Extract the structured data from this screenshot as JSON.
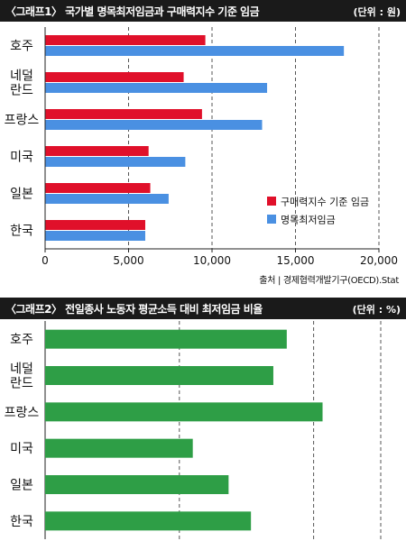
{
  "chart_data": [
    {
      "type": "bar",
      "orientation": "horizontal",
      "title": "〈그래프1〉 국가별 명목최저임금과 구매력지수 기준 임금",
      "unit": "(단위 : 원)",
      "categories": [
        "호주",
        "네덜\n란드",
        "프랑스",
        "미국",
        "일본",
        "한국"
      ],
      "series": [
        {
          "name": "구매력지수 기준 임금",
          "color": "#e0102a",
          "values": [
            9600,
            8300,
            9400,
            6200,
            6300,
            6000
          ]
        },
        {
          "name": "명목최저임금",
          "color": "#4a90e2",
          "values": [
            17900,
            13300,
            13000,
            8400,
            7400,
            6000
          ]
        }
      ],
      "xlim": [
        0,
        20000
      ],
      "xticks": [
        0,
        5000,
        10000,
        15000,
        20000
      ],
      "xtick_labels": [
        "0",
        "5,000",
        "10,000",
        "15,000",
        "20,000"
      ],
      "legend_position": "bottom-right",
      "source": "출처 | 경제협력개발기구(OECD).Stat"
    },
    {
      "type": "bar",
      "orientation": "horizontal",
      "title": "〈그래프2〉 전일종사 노동자 평균소득 대비 최저임금 비율",
      "unit": "(단위 : %)",
      "categories": [
        "호주",
        "네덜\n란드",
        "프랑스",
        "미국",
        "일본",
        "한국"
      ],
      "series": [
        {
          "color": "#2e9e46",
          "values": [
            54,
            51,
            62,
            33,
            41,
            46
          ]
        }
      ],
      "xlim": [
        0,
        75
      ]
    }
  ]
}
